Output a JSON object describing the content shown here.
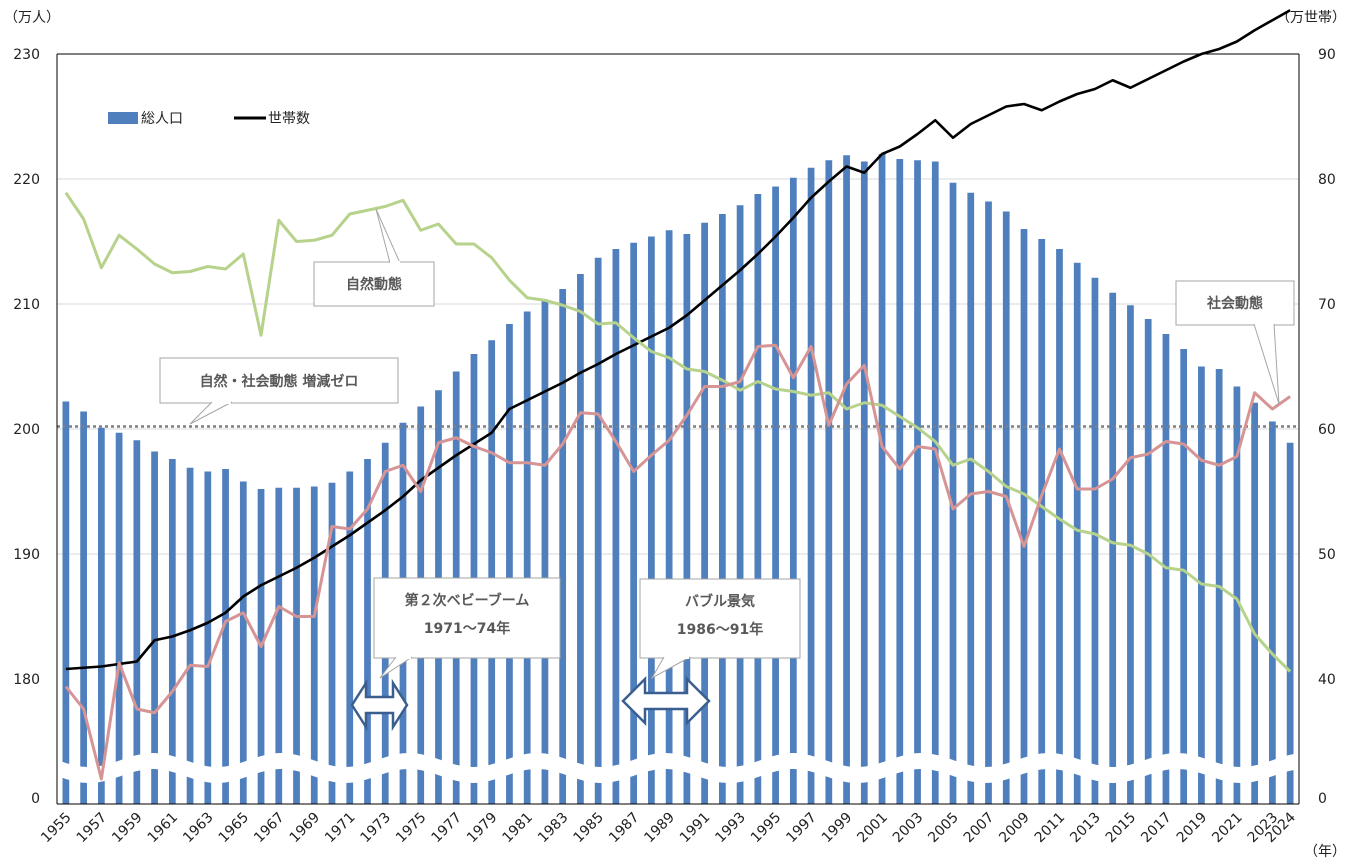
{
  "chart_data": {
    "type": "bar+line",
    "left_axis_unit": "（万人）",
    "right_axis_unit": "（万世帯）",
    "x_axis_unit": "（年）",
    "left_ticks": [
      "230",
      "220",
      "210",
      "200",
      "190",
      "180",
      "0"
    ],
    "right_ticks": [
      "90",
      "80",
      "70",
      "60",
      "50",
      "40",
      "0"
    ],
    "left_axis_break": {
      "below": 180,
      "floor": 0
    },
    "right_axis_break": {
      "below": 40,
      "floor": 0
    },
    "years": [
      1955,
      1956,
      1957,
      1958,
      1959,
      1960,
      1961,
      1962,
      1963,
      1964,
      1965,
      1966,
      1967,
      1968,
      1969,
      1970,
      1971,
      1972,
      1973,
      1974,
      1975,
      1976,
      1977,
      1978,
      1979,
      1980,
      1981,
      1982,
      1983,
      1984,
      1985,
      1986,
      1987,
      1988,
      1989,
      1990,
      1991,
      1992,
      1993,
      1994,
      1995,
      1996,
      1997,
      1998,
      1999,
      2000,
      2001,
      2002,
      2003,
      2004,
      2005,
      2006,
      2007,
      2008,
      2009,
      2010,
      2011,
      2012,
      2013,
      2014,
      2015,
      2016,
      2017,
      2018,
      2019,
      2020,
      2021,
      2022,
      2023,
      2024
    ],
    "x_tick_labels": [
      "1955",
      "1957",
      "1959",
      "1961",
      "1963",
      "1965",
      "1967",
      "1969",
      "1971",
      "1973",
      "1975",
      "1977",
      "1979",
      "1981",
      "1983",
      "1985",
      "1987",
      "1989",
      "1991",
      "1993",
      "1995",
      "1997",
      "1999",
      "2001",
      "2003",
      "2005",
      "2007",
      "2009",
      "2011",
      "2013",
      "2015",
      "2017",
      "2019",
      "2021",
      "2023",
      "2024"
    ],
    "series": [
      {
        "name": "総人口",
        "kind": "bar",
        "axis": "left",
        "color": "#4f7fbd",
        "values": [
          202.2,
          201.4,
          200.1,
          199.7,
          199.1,
          198.2,
          197.6,
          196.9,
          196.6,
          196.8,
          195.8,
          195.2,
          195.3,
          195.3,
          195.4,
          195.7,
          196.6,
          197.6,
          198.9,
          200.5,
          201.8,
          203.1,
          204.6,
          206.0,
          207.1,
          208.4,
          209.4,
          210.3,
          211.2,
          212.4,
          213.7,
          214.4,
          214.9,
          215.4,
          215.9,
          215.6,
          216.5,
          217.2,
          217.9,
          218.8,
          219.4,
          220.1,
          220.9,
          221.5,
          221.9,
          221.4,
          222.0,
          221.6,
          221.5,
          221.4,
          219.7,
          218.9,
          218.2,
          217.4,
          216.0,
          215.2,
          214.4,
          213.3,
          212.1,
          210.9,
          209.9,
          208.8,
          207.6,
          206.4,
          205.0,
          204.8,
          203.4,
          202.1,
          200.6,
          198.9
        ]
      },
      {
        "name": "世帯数",
        "kind": "line",
        "axis": "right",
        "color": "#000000",
        "values": [
          40.8,
          40.9,
          41.0,
          41.2,
          41.4,
          43.1,
          43.4,
          43.9,
          44.5,
          45.3,
          46.6,
          47.5,
          48.2,
          48.9,
          49.7,
          50.6,
          51.5,
          52.5,
          53.5,
          54.6,
          55.9,
          56.9,
          57.9,
          58.8,
          59.7,
          61.6,
          62.3,
          63.0,
          63.7,
          64.5,
          65.2,
          66.0,
          66.7,
          67.4,
          68.1,
          69.1,
          70.3,
          71.5,
          72.7,
          74.0,
          75.4,
          76.9,
          78.5,
          79.8,
          81.0,
          80.5,
          82.0,
          82.6,
          83.6,
          84.7,
          83.3,
          84.4,
          85.1,
          85.8,
          86.0,
          85.5,
          86.2,
          86.8,
          87.2,
          87.9,
          87.3,
          88.0,
          88.7,
          89.4,
          90.0,
          90.4,
          91.0,
          91.9,
          92.7,
          93.5
        ]
      },
      {
        "name": "自然動態",
        "kind": "line",
        "axis": "left",
        "color": "#b7d28b",
        "values": [
          218.9,
          216.8,
          212.9,
          215.5,
          214.4,
          213.2,
          212.5,
          212.6,
          213.0,
          212.8,
          214.0,
          207.5,
          216.7,
          215.0,
          215.1,
          215.5,
          217.2,
          217.5,
          217.8,
          218.3,
          215.9,
          216.4,
          214.8,
          214.8,
          213.7,
          211.9,
          210.5,
          210.3,
          209.9,
          209.4,
          208.4,
          208.5,
          207.3,
          206.2,
          205.7,
          204.8,
          204.6,
          203.9,
          203.1,
          203.8,
          203.2,
          203.0,
          202.7,
          202.9,
          201.6,
          202.1,
          201.9,
          201.0,
          200.1,
          199.0,
          197.1,
          197.6,
          196.6,
          195.4,
          194.8,
          193.8,
          192.8,
          191.9,
          191.6,
          190.9,
          190.7,
          190.0,
          188.9,
          188.7,
          187.6,
          187.4,
          186.4,
          183.6,
          182.0,
          180.6
        ]
      },
      {
        "name": "社会動態",
        "kind": "line",
        "axis": "left",
        "color": "#d69495",
        "values": [
          179.4,
          177.6,
          172.0,
          181.3,
          177.6,
          177.3,
          179.0,
          181.1,
          181.0,
          184.6,
          185.3,
          182.6,
          185.8,
          185.0,
          185.0,
          192.2,
          192.0,
          193.6,
          196.6,
          197.1,
          195.0,
          198.9,
          199.3,
          198.6,
          198.1,
          197.3,
          197.3,
          197.1,
          198.8,
          201.3,
          201.2,
          199.0,
          196.6,
          197.9,
          199.1,
          201.1,
          203.4,
          203.4,
          203.8,
          206.6,
          206.7,
          204.1,
          206.6,
          200.3,
          203.6,
          205.1,
          198.6,
          196.8,
          198.6,
          198.4,
          193.6,
          194.8,
          195.0,
          194.6,
          190.6,
          194.7,
          198.4,
          195.2,
          195.2,
          196.0,
          197.7,
          198.0,
          199.0,
          198.8,
          197.5,
          197.1,
          197.8,
          202.9,
          201.6,
          202.6
        ]
      }
    ],
    "reference_line": {
      "value": 200.2,
      "label": "自然・社会動態 増減ゼロ"
    },
    "annotations": {
      "natural": "自然動態",
      "social": "社会動態",
      "zero_line": "自然・社会動態 増減ゼロ",
      "baby_boom_line1": "第２次ベビーブーム",
      "baby_boom_line2": "1971〜74年",
      "bubble_line1": "バブル景気",
      "bubble_line2": "1986〜91年"
    },
    "legend": {
      "position": "top-left",
      "items": [
        "総人口",
        "世帯数"
      ]
    },
    "grid": true,
    "ylim_left": [
      180,
      230
    ],
    "ylim_right": [
      40,
      90
    ]
  }
}
